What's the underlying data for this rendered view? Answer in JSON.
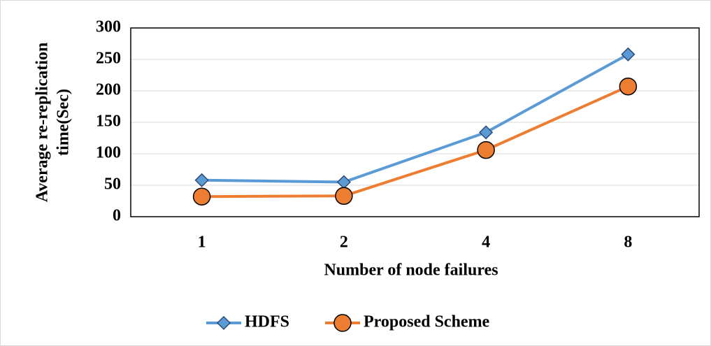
{
  "chart_data": {
    "type": "line",
    "ylabel": [
      "Average re-replication",
      "time(Sec)"
    ],
    "xlabel": "Number of node failures",
    "categories": [
      "1",
      "2",
      "4",
      "8"
    ],
    "series": [
      {
        "name": "HDFS",
        "color": "#5b9bd5",
        "marker": "diamond",
        "values": [
          58,
          55,
          134,
          258
        ]
      },
      {
        "name": "Proposed Scheme",
        "color": "#ed7d31",
        "marker": "circle",
        "values": [
          32,
          33,
          106,
          207
        ]
      }
    ],
    "ylim": [
      0,
      300
    ],
    "yticks": [
      0,
      50,
      100,
      150,
      200,
      250,
      300
    ],
    "grid": true,
    "legend": "bottom"
  }
}
